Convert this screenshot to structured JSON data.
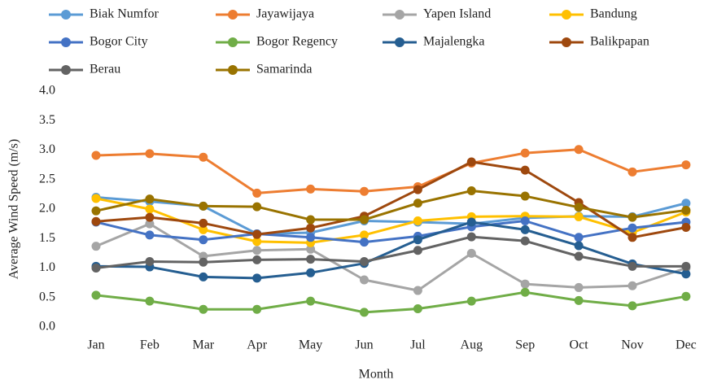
{
  "chart_data": {
    "type": "line",
    "xlabel": "Month",
    "ylabel": "Average Wind Speed (m/s)",
    "categories": [
      "Jan",
      "Feb",
      "Mar",
      "Apr",
      "May",
      "Jun",
      "Jul",
      "Aug",
      "Sep",
      "Oct",
      "Nov",
      "Dec"
    ],
    "ylim": [
      0,
      4
    ],
    "yticks": [
      {
        "value": 0,
        "label": "0.0"
      },
      0.5,
      {
        "value": 1,
        "label": "1.0"
      },
      1.5,
      {
        "value": 2,
        "label": "2.0"
      },
      2.5,
      {
        "value": 3,
        "label": "3.0"
      },
      3.5,
      {
        "value": 4,
        "label": "4.0"
      }
    ],
    "grid": false,
    "legend": "top",
    "series": [
      {
        "name": "Biak Numfor",
        "color": "#5b9bd5",
        "values": [
          2.2,
          2.13,
          2.05,
          1.58,
          1.6,
          1.8,
          1.78,
          1.75,
          1.85,
          1.88,
          1.87,
          2.1
        ]
      },
      {
        "name": "Jayawijaya",
        "color": "#ed7d31",
        "values": [
          2.91,
          2.94,
          2.88,
          2.27,
          2.34,
          2.3,
          2.38,
          2.78,
          2.95,
          3.01,
          2.63,
          2.75
        ]
      },
      {
        "name": "Yapen Island",
        "color": "#a5a5a5",
        "values": [
          1.37,
          1.75,
          1.2,
          1.3,
          1.32,
          0.8,
          0.62,
          1.25,
          0.73,
          0.67,
          0.7,
          1.0
        ]
      },
      {
        "name": "Bandung",
        "color": "#ffc000",
        "values": [
          2.18,
          2.0,
          1.65,
          1.45,
          1.43,
          1.56,
          1.8,
          1.87,
          1.88,
          1.87,
          1.6,
          1.95
        ]
      },
      {
        "name": "Bogor City",
        "color": "#4472c4",
        "values": [
          1.78,
          1.56,
          1.48,
          1.58,
          1.52,
          1.44,
          1.54,
          1.7,
          1.8,
          1.52,
          1.68,
          1.78
        ]
      },
      {
        "name": "Bogor Regency",
        "color": "#70ad47",
        "values": [
          0.54,
          0.44,
          0.3,
          0.3,
          0.44,
          0.25,
          0.31,
          0.44,
          0.59,
          0.45,
          0.36,
          0.52
        ]
      },
      {
        "name": "Majalengka",
        "color": "#255e91",
        "values": [
          1.03,
          1.02,
          0.85,
          0.83,
          0.92,
          1.08,
          1.48,
          1.78,
          1.65,
          1.38,
          1.07,
          0.9
        ]
      },
      {
        "name": "Balikpapan",
        "color": "#9e480e",
        "values": [
          1.79,
          1.86,
          1.76,
          1.57,
          1.68,
          1.88,
          2.33,
          2.8,
          2.66,
          2.11,
          1.52,
          1.69
        ]
      },
      {
        "name": "Berau",
        "color": "#636363",
        "values": [
          1.0,
          1.11,
          1.1,
          1.14,
          1.15,
          1.11,
          1.3,
          1.53,
          1.46,
          1.2,
          1.03,
          1.03
        ]
      },
      {
        "name": "Samarinda",
        "color": "#997300",
        "values": [
          1.97,
          2.17,
          2.05,
          2.04,
          1.82,
          1.82,
          2.1,
          2.31,
          2.22,
          2.03,
          1.86,
          1.98
        ]
      }
    ]
  }
}
